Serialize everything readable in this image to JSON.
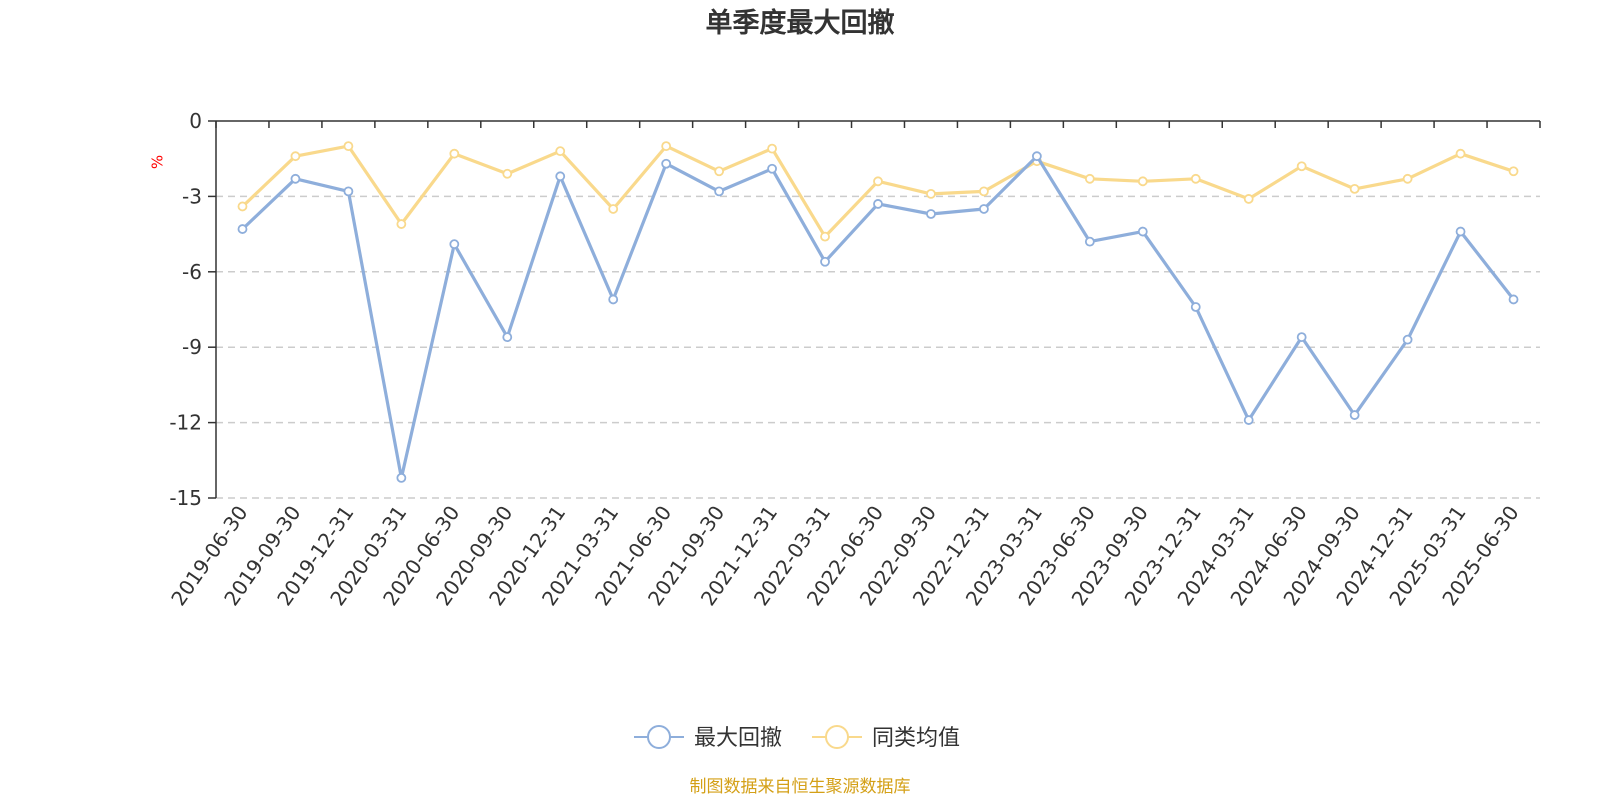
{
  "chart_data": {
    "type": "line",
    "title": "单季度最大回撤",
    "ylabel": "%",
    "ylim": [
      -15,
      0
    ],
    "yticks": [
      0,
      -3,
      -6,
      -9,
      -12,
      -15
    ],
    "grid": true,
    "legend_position": "bottom",
    "categories": [
      "2019-06-30",
      "2019-09-30",
      "2019-12-31",
      "2020-03-31",
      "2020-06-30",
      "2020-09-30",
      "2020-12-31",
      "2021-03-31",
      "2021-06-30",
      "2021-09-30",
      "2021-12-31",
      "2022-03-31",
      "2022-06-30",
      "2022-09-30",
      "2022-12-31",
      "2023-03-31",
      "2023-06-30",
      "2023-09-30",
      "2023-12-31",
      "2024-03-31",
      "2024-06-30",
      "2024-09-30",
      "2024-12-31",
      "2025-03-31",
      "2025-06-30"
    ],
    "series": [
      {
        "name": "最大回撤",
        "color": "#8eaedb",
        "values": [
          -4.3,
          -2.3,
          -2.8,
          -14.2,
          -4.9,
          -8.6,
          -2.2,
          -7.1,
          -1.7,
          -2.8,
          -1.9,
          -5.6,
          -3.3,
          -3.7,
          -3.5,
          -1.4,
          -4.8,
          -4.4,
          -7.4,
          -11.9,
          -8.6,
          -11.7,
          -8.7,
          -4.4,
          -7.1
        ]
      },
      {
        "name": "同类均值",
        "color": "#f9d98c",
        "values": [
          -3.4,
          -1.4,
          -1.0,
          -4.1,
          -1.3,
          -2.1,
          -1.2,
          -3.5,
          -1.0,
          -2.0,
          -1.1,
          -4.6,
          -2.4,
          -2.9,
          -2.8,
          -1.6,
          -2.3,
          -2.4,
          -2.3,
          -3.1,
          -1.8,
          -2.7,
          -2.3,
          -1.3,
          -2.0
        ]
      }
    ]
  },
  "footer": {
    "source": "制图数据来自恒生聚源数据库"
  }
}
